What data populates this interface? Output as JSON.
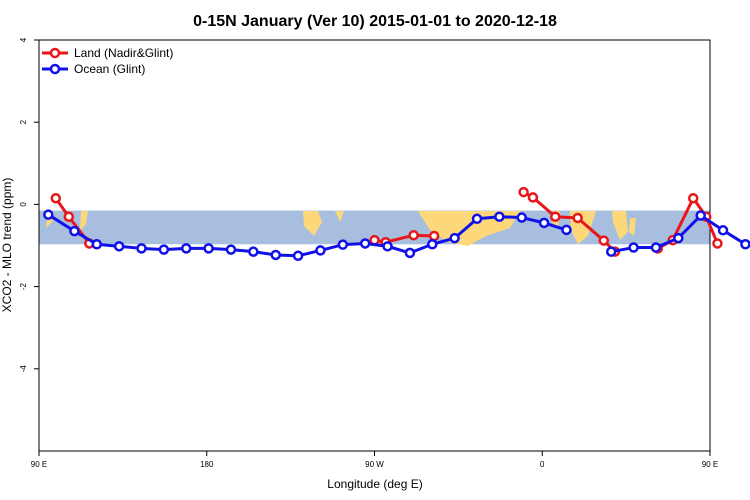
{
  "chart_data": {
    "type": "line",
    "title": "0-15N January (Ver 10)   2015-01-01 to 2020-12-18",
    "xlabel": "Longitude (deg E)",
    "ylabel": "XCO2 - MLO trend (ppm)",
    "xlim": [
      90,
      450
    ],
    "ylim": [
      -6,
      4
    ],
    "xticks": [
      {
        "value": 90,
        "label": "90 E"
      },
      {
        "value": 180,
        "label": "180"
      },
      {
        "value": 270,
        "label": "90 W"
      },
      {
        "value": 360,
        "label": "0"
      },
      {
        "value": 450,
        "label": "90 E"
      },
      {
        "value": 540,
        "label": "180"
      }
    ],
    "yticks": [
      {
        "value": 4,
        "label": "4"
      },
      {
        "value": 2,
        "label": "2"
      },
      {
        "value": 0,
        "label": "0"
      },
      {
        "value": -2,
        "label": "-2"
      },
      {
        "value": -4,
        "label": "-4"
      }
    ],
    "band": {
      "y0": -0.15,
      "y1": -0.97,
      "sea_color": "#a7bedf",
      "land_color": "#fdd87a"
    },
    "grid": false,
    "legend_position": "top-left",
    "series": [
      {
        "name": "Land (Nadir&Glint)",
        "color": "#e8171b",
        "segments": [
          {
            "x": [
              99,
              106,
              117
            ],
            "y": [
              0.15,
              -0.3,
              -0.95
            ]
          },
          {
            "x": [
              270,
              276,
              291,
              302
            ],
            "y": [
              -0.87,
              -0.92,
              -0.75,
              -0.77
            ]
          },
          {
            "x": [
              350,
              355,
              367,
              379,
              393,
              399
            ],
            "y": [
              0.3,
              0.17,
              -0.3,
              -0.33,
              -0.88,
              -1.15
            ]
          },
          {
            "x": [
              422,
              430,
              441,
              448,
              454
            ],
            "y": [
              -1.07,
              -0.87,
              0.15,
              -0.3,
              -0.95
            ]
          }
        ]
      },
      {
        "name": "Ocean (Glint)",
        "color": "#1010e8",
        "segments": [
          {
            "x": [
              95,
              109,
              121,
              133,
              145,
              157,
              169,
              181,
              193,
              205,
              217,
              229,
              241,
              253,
              265,
              277,
              289,
              301,
              313,
              325,
              337,
              349,
              361,
              373
            ],
            "y": [
              -0.25,
              -0.65,
              -0.97,
              -1.02,
              -1.07,
              -1.1,
              -1.07,
              -1.07,
              -1.1,
              -1.15,
              -1.23,
              -1.25,
              -1.12,
              -0.98,
              -0.95,
              -1.02,
              -1.18,
              -0.97,
              -0.82,
              -0.35,
              -0.3,
              -0.32,
              -0.45,
              -0.62
            ]
          },
          {
            "x": [
              397,
              409,
              421,
              433,
              445,
              457,
              469,
              481,
              493,
              505,
              517,
              529,
              541
            ],
            "y": [
              -1.15,
              -1.05,
              -1.05,
              -0.82,
              -0.27,
              -0.63,
              -0.97,
              -1.02,
              -1.07,
              -1.07,
              -1.07,
              -1.1,
              -1.05
            ]
          }
        ]
      }
    ]
  }
}
